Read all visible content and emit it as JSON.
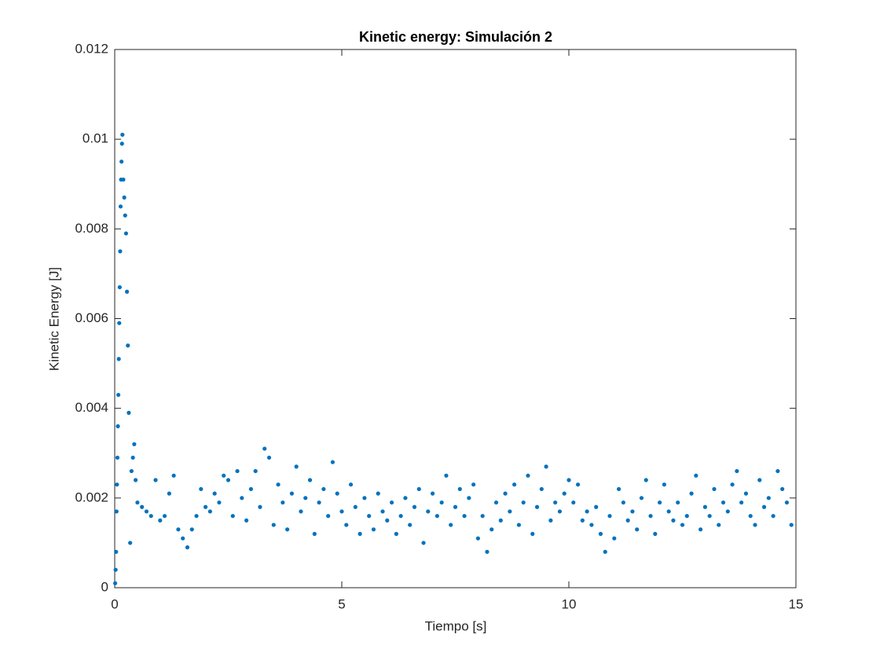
{
  "chart_data": {
    "type": "scatter",
    "title": "Kinetic energy: Simulación 2",
    "x_label": "Tiempo [s]",
    "y_label": "Kinetic Energy [J]",
    "xlim": [
      0,
      15
    ],
    "ylim": [
      0,
      0.012
    ],
    "xticks": [
      0,
      5,
      10,
      15
    ],
    "yticks": [
      0,
      0.002,
      0.004,
      0.006,
      0.008,
      0.01,
      0.012
    ],
    "series": [
      {
        "color": "#0072bd",
        "x": [
          0.01,
          0.02,
          0.03,
          0.04,
          0.05,
          0.06,
          0.07,
          0.08,
          0.09,
          0.1,
          0.11,
          0.12,
          0.13,
          0.14,
          0.15,
          0.16,
          0.17,
          0.19,
          0.21,
          0.23,
          0.25,
          0.27,
          0.29,
          0.31,
          0.34,
          0.37,
          0.4,
          0.43,
          0.46,
          0.5,
          0.6,
          0.7,
          0.8,
          0.9,
          1.0,
          1.1,
          1.2,
          1.3,
          1.4,
          1.5,
          1.6,
          1.7,
          1.8,
          1.9,
          2.0,
          2.1,
          2.2,
          2.3,
          2.4,
          2.5,
          2.6,
          2.7,
          2.8,
          2.9,
          3.0,
          3.1,
          3.2,
          3.3,
          3.4,
          3.5,
          3.6,
          3.7,
          3.8,
          3.9,
          4.0,
          4.1,
          4.2,
          4.3,
          4.4,
          4.5,
          4.6,
          4.7,
          4.8,
          4.9,
          5.0,
          5.1,
          5.2,
          5.3,
          5.4,
          5.5,
          5.6,
          5.7,
          5.8,
          5.9,
          6.0,
          6.1,
          6.2,
          6.3,
          6.4,
          6.5,
          6.6,
          6.7,
          6.8,
          6.9,
          7.0,
          7.1,
          7.2,
          7.3,
          7.4,
          7.5,
          7.6,
          7.7,
          7.8,
          7.9,
          8.0,
          8.1,
          8.2,
          8.3,
          8.4,
          8.5,
          8.6,
          8.7,
          8.8,
          8.9,
          9.0,
          9.1,
          9.2,
          9.3,
          9.4,
          9.5,
          9.6,
          9.7,
          9.8,
          9.9,
          10.0,
          10.1,
          10.2,
          10.3,
          10.4,
          10.5,
          10.6,
          10.7,
          10.8,
          10.9,
          11.0,
          11.1,
          11.2,
          11.3,
          11.4,
          11.5,
          11.6,
          11.7,
          11.8,
          11.9,
          12.0,
          12.1,
          12.2,
          12.3,
          12.4,
          12.5,
          12.6,
          12.7,
          12.8,
          12.9,
          13.0,
          13.1,
          13.2,
          13.3,
          13.4,
          13.5,
          13.6,
          13.7,
          13.8,
          13.9,
          14.0,
          14.1,
          14.2,
          14.3,
          14.4,
          14.5,
          14.6,
          14.7,
          14.8,
          14.9
        ],
        "values": [
          0.0001,
          0.0004,
          0.0008,
          0.0017,
          0.0023,
          0.0029,
          0.0036,
          0.0043,
          0.0051,
          0.0059,
          0.0067,
          0.0075,
          0.0085,
          0.0091,
          0.0095,
          0.0099,
          0.0101,
          0.0091,
          0.0087,
          0.0083,
          0.0079,
          0.0066,
          0.0054,
          0.0039,
          0.001,
          0.0026,
          0.0029,
          0.0032,
          0.0024,
          0.0019,
          0.0018,
          0.0017,
          0.0016,
          0.0024,
          0.0015,
          0.0016,
          0.0021,
          0.0025,
          0.0013,
          0.0011,
          0.0009,
          0.0013,
          0.0016,
          0.0022,
          0.0018,
          0.0017,
          0.0021,
          0.0019,
          0.0025,
          0.0024,
          0.0016,
          0.0026,
          0.002,
          0.0015,
          0.0022,
          0.0026,
          0.0018,
          0.0031,
          0.0029,
          0.0014,
          0.0023,
          0.0019,
          0.0013,
          0.0021,
          0.0027,
          0.0017,
          0.002,
          0.0024,
          0.0012,
          0.0019,
          0.0022,
          0.0016,
          0.0028,
          0.0021,
          0.0017,
          0.0014,
          0.0023,
          0.0018,
          0.0012,
          0.002,
          0.0016,
          0.0013,
          0.0021,
          0.0017,
          0.0015,
          0.0019,
          0.0012,
          0.0016,
          0.002,
          0.0014,
          0.0018,
          0.0022,
          0.001,
          0.0017,
          0.0021,
          0.0016,
          0.0019,
          0.0025,
          0.0014,
          0.0018,
          0.0022,
          0.0016,
          0.002,
          0.0023,
          0.0011,
          0.0016,
          0.0008,
          0.0013,
          0.0019,
          0.0015,
          0.0021,
          0.0017,
          0.0023,
          0.0014,
          0.0019,
          0.0025,
          0.0012,
          0.0018,
          0.0022,
          0.0027,
          0.0015,
          0.0019,
          0.0017,
          0.0021,
          0.0024,
          0.0019,
          0.0023,
          0.0015,
          0.0017,
          0.0014,
          0.0018,
          0.0012,
          0.0008,
          0.0016,
          0.0011,
          0.0022,
          0.0019,
          0.0015,
          0.0017,
          0.0013,
          0.002,
          0.0024,
          0.0016,
          0.0012,
          0.0019,
          0.0023,
          0.0017,
          0.0015,
          0.0019,
          0.0014,
          0.0016,
          0.0021,
          0.0025,
          0.0013,
          0.0018,
          0.0016,
          0.0022,
          0.0014,
          0.0019,
          0.0017,
          0.0023,
          0.0026,
          0.0019,
          0.0021,
          0.0016,
          0.0014,
          0.0024,
          0.0018,
          0.002,
          0.0016,
          0.0026,
          0.0022,
          0.0019,
          0.0014
        ]
      }
    ]
  }
}
